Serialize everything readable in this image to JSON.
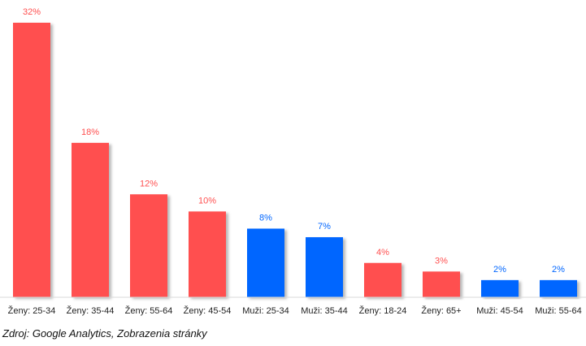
{
  "chart_data": {
    "type": "bar",
    "categories": [
      "Ženy: 25-34",
      "Ženy: 35-44",
      "Ženy: 55-64",
      "Ženy: 45-54",
      "Muži: 25-34",
      "Muži: 35-44",
      "Ženy: 18-24",
      "Ženy: 65+",
      "Muži: 45-54",
      "Muži: 55-64"
    ],
    "values": [
      32,
      18,
      12,
      10,
      8,
      7,
      4,
      3,
      2,
      2
    ],
    "value_labels": [
      "32%",
      "18%",
      "12%",
      "10%",
      "8%",
      "7%",
      "4%",
      "3%",
      "2%",
      "2%"
    ],
    "groups": [
      "Ženy",
      "Ženy",
      "Ženy",
      "Ženy",
      "Muži",
      "Muži",
      "Ženy",
      "Ženy",
      "Muži",
      "Muži"
    ],
    "colors": {
      "Ženy": "#ff5050",
      "Muži": "#0066ff"
    },
    "ylim": [
      0,
      32
    ],
    "grid": false,
    "legend": "none"
  },
  "source": "Zdroj: Google Analytics, Zobrazenia stránky"
}
